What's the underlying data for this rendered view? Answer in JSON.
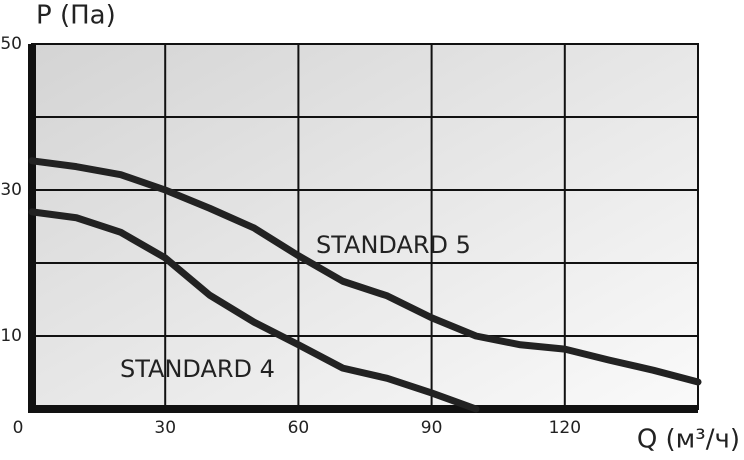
{
  "chart_data": {
    "type": "line",
    "y_label": "P (Па)",
    "x_label": "Q (м³/ч)",
    "xlim": [
      0,
      150
    ],
    "ylim": [
      0,
      50
    ],
    "xticks": [
      0,
      30,
      60,
      90,
      120
    ],
    "yticks": [
      10,
      30,
      50
    ],
    "xgrid": [
      30,
      60,
      90,
      120
    ],
    "ygrid": [
      10,
      20,
      30,
      40
    ],
    "x": [
      0,
      10,
      20,
      30,
      40,
      50,
      60,
      70,
      80,
      90,
      100,
      110,
      120,
      130,
      140,
      150
    ],
    "series": [
      {
        "name": "STANDARD 5",
        "color": "#222222",
        "values": [
          34,
          33.2,
          32.1,
          30,
          27.5,
          24.8,
          21,
          17.5,
          15.5,
          12.5,
          10,
          8.8,
          8.2,
          6.7,
          5.3,
          3.7
        ]
      },
      {
        "name": "STANDARD 4",
        "color": "#222222",
        "values": [
          27,
          26.2,
          24.2,
          20.7,
          15.6,
          11.9,
          8.8,
          5.6,
          4.2,
          2.2,
          0,
          null,
          null,
          null,
          null,
          null
        ]
      }
    ]
  }
}
